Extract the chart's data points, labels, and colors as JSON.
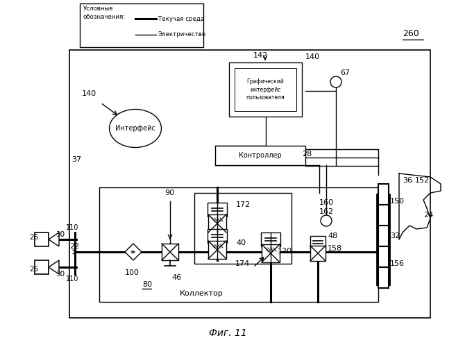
{
  "bg_color": "#ffffff",
  "title": "Фиг. 11",
  "legend_title": "Условные\nобозначения:",
  "legend_line1": "Текучая среда",
  "legend_line2": "Электричество",
  "controller_label": "Контроллер",
  "interface_label": "Интерфейс",
  "gui_label": "Графический\nинтерфейс\nпользователя",
  "kollector_label": "Коллектор",
  "fig_label": "Фиг. 11",
  "label_260": "260",
  "label_80": "80"
}
